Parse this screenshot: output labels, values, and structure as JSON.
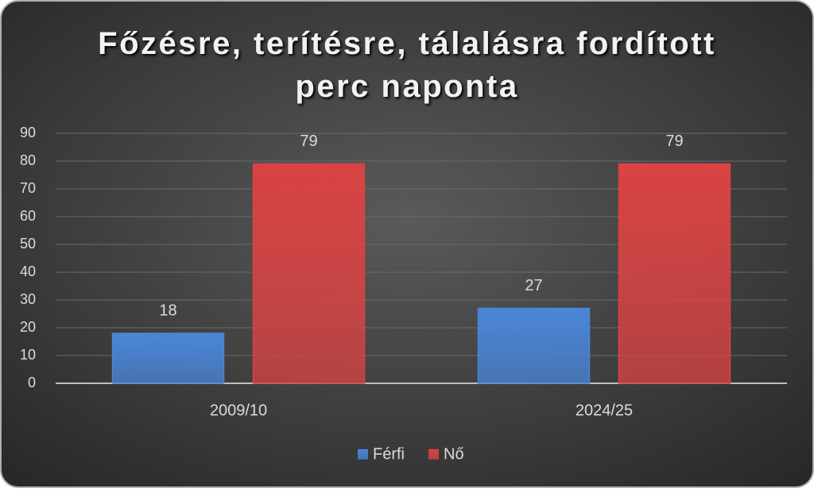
{
  "chart_data": {
    "type": "bar",
    "title": "Főzésre, terítésre, tálalásra fordított perc naponta",
    "categories": [
      "2009/10",
      "2024/25"
    ],
    "series": [
      {
        "name": "Férfi",
        "color": "#4a86d8",
        "values": [
          18,
          27
        ]
      },
      {
        "name": "Nő",
        "color": "#d94343",
        "values": [
          79,
          79
        ]
      }
    ],
    "ylim": [
      0,
      90
    ],
    "yticks": [
      0,
      10,
      20,
      30,
      40,
      50,
      60,
      70,
      80,
      90
    ],
    "grid": true,
    "legend": "bottom"
  }
}
